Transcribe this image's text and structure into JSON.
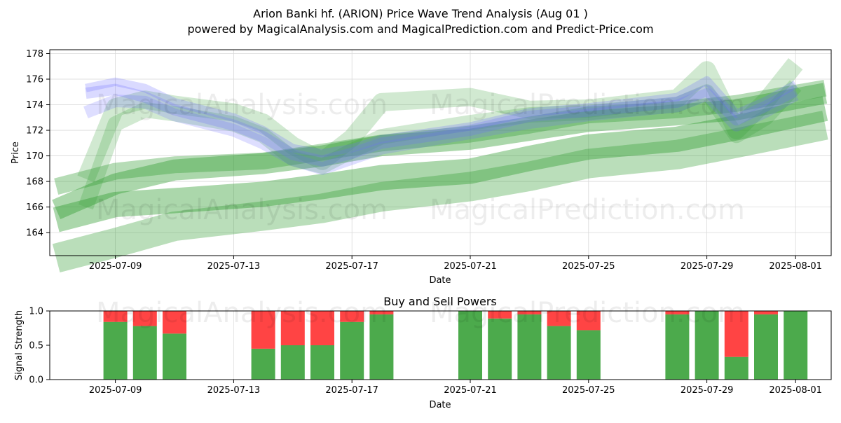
{
  "header": {
    "title_line1": "Arion Banki hf. (ARION) Price Wave Trend Analysis (Aug 01 )",
    "title_line2": "powered by MagicalAnalysis.com and MagicalPrediction.com and Predict-Price.com"
  },
  "watermarks": {
    "left": "MagicalAnalysis.com",
    "right": "MagicalPrediction.com"
  },
  "colors": {
    "blue_band": "#6b6bff",
    "green_band": "#2e9a2e",
    "buy": "#4caa4c",
    "sell": "#ff4444"
  },
  "chart_data": [
    {
      "type": "area",
      "title": "",
      "xlabel": "Date",
      "ylabel": "Price",
      "ylim": [
        162.2,
        178.3
      ],
      "grid": true,
      "x_dates": [
        "2025-07-07",
        "2025-07-08",
        "2025-07-09",
        "2025-07-10",
        "2025-07-11",
        "2025-07-12",
        "2025-07-13",
        "2025-07-14",
        "2025-07-15",
        "2025-07-16",
        "2025-07-17",
        "2025-07-18",
        "2025-07-19",
        "2025-07-20",
        "2025-07-21",
        "2025-07-22",
        "2025-07-23",
        "2025-07-24",
        "2025-07-25",
        "2025-07-26",
        "2025-07-27",
        "2025-07-28",
        "2025-07-29",
        "2025-07-30",
        "2025-07-31",
        "2025-08-01",
        "2025-08-02"
      ],
      "x_tick_labels": [
        "2025-07-09",
        "2025-07-13",
        "2025-07-17",
        "2025-07-21",
        "2025-07-25",
        "2025-07-29",
        "2025-08-01"
      ],
      "y_tick_labels": [
        "164",
        "166",
        "168",
        "170",
        "172",
        "174",
        "176",
        "178"
      ],
      "series": [
        {
          "name": "blue wave 1",
          "x": [
            "2025-07-08",
            "2025-07-09",
            "2025-07-10",
            "2025-07-11",
            "2025-07-13",
            "2025-07-14",
            "2025-07-15",
            "2025-07-16",
            "2025-07-17",
            "2025-07-18",
            "2025-07-21",
            "2025-07-23",
            "2025-07-25",
            "2025-07-28",
            "2025-07-29",
            "2025-07-30",
            "2025-07-31",
            "2025-08-01"
          ],
          "values": [
            175.3,
            175.8,
            175.3,
            174.2,
            173.0,
            172.0,
            170.6,
            170.2,
            170.6,
            171.3,
            172.3,
            173.4,
            173.8,
            174.6,
            175.9,
            173.3,
            174.3,
            175.6
          ]
        },
        {
          "name": "blue wave 2",
          "x": [
            "2025-07-08",
            "2025-07-09",
            "2025-07-10",
            "2025-07-11",
            "2025-07-13",
            "2025-07-14",
            "2025-07-15",
            "2025-07-16",
            "2025-07-17",
            "2025-07-18",
            "2025-07-21",
            "2025-07-23",
            "2025-07-25",
            "2025-07-28",
            "2025-07-29",
            "2025-07-30",
            "2025-07-31",
            "2025-08-01"
          ],
          "values": [
            174.9,
            175.2,
            174.6,
            173.6,
            172.4,
            171.5,
            170.1,
            169.6,
            170.2,
            171.0,
            172.0,
            173.1,
            173.5,
            174.2,
            175.1,
            172.8,
            173.9,
            175.1
          ]
        },
        {
          "name": "blue wave 3",
          "x": [
            "2025-07-08",
            "2025-07-09",
            "2025-07-10",
            "2025-07-11",
            "2025-07-13",
            "2025-07-14",
            "2025-07-15",
            "2025-07-16",
            "2025-07-17",
            "2025-07-18",
            "2025-07-21",
            "2025-07-23",
            "2025-07-25",
            "2025-07-28",
            "2025-07-29",
            "2025-07-30",
            "2025-07-31",
            "2025-08-01"
          ],
          "values": [
            173.4,
            174.3,
            174.2,
            173.2,
            172.0,
            171.0,
            169.7,
            169.0,
            169.8,
            170.6,
            171.8,
            172.6,
            173.2,
            173.9,
            174.8,
            172.4,
            173.5,
            174.8
          ]
        },
        {
          "name": "green wave upper",
          "x": [
            "2025-07-08",
            "2025-07-09",
            "2025-07-10",
            "2025-07-11",
            "2025-07-13",
            "2025-07-14",
            "2025-07-15",
            "2025-07-16",
            "2025-07-17",
            "2025-07-18",
            "2025-07-21",
            "2025-07-23",
            "2025-07-25",
            "2025-07-28",
            "2025-07-29",
            "2025-07-30",
            "2025-07-31",
            "2025-08-01"
          ],
          "values": [
            168.2,
            173.8,
            174.4,
            174.0,
            173.4,
            172.6,
            170.8,
            169.6,
            171.4,
            174.2,
            174.6,
            173.6,
            173.7,
            174.5,
            176.7,
            172.0,
            174.3,
            177.2
          ]
        },
        {
          "name": "green wave lower",
          "x": [
            "2025-07-08",
            "2025-07-09",
            "2025-07-10",
            "2025-07-11",
            "2025-07-13",
            "2025-07-14",
            "2025-07-15",
            "2025-07-16",
            "2025-07-17",
            "2025-07-18",
            "2025-07-21",
            "2025-07-23",
            "2025-07-25",
            "2025-07-28",
            "2025-07-29",
            "2025-07-30",
            "2025-07-31",
            "2025-08-01"
          ],
          "values": [
            166.0,
            172.5,
            173.6,
            173.3,
            172.5,
            171.6,
            169.8,
            169.2,
            170.4,
            171.5,
            172.6,
            173.2,
            173.4,
            174.0,
            175.0,
            171.6,
            173.0,
            175.5
          ]
        },
        {
          "name": "trend band 1",
          "x": [
            "2025-07-07",
            "2025-07-09",
            "2025-07-11",
            "2025-07-14",
            "2025-07-16",
            "2025-07-18",
            "2025-07-21",
            "2025-07-23",
            "2025-07-25",
            "2025-07-28",
            "2025-07-30",
            "2025-08-02"
          ],
          "values": [
            167.6,
            168.8,
            169.3,
            169.6,
            170.3,
            171.0,
            171.7,
            172.4,
            173.2,
            173.6,
            174.1,
            175.3
          ]
        },
        {
          "name": "trend band 2",
          "x": [
            "2025-07-07",
            "2025-07-09",
            "2025-07-11",
            "2025-07-14",
            "2025-07-16",
            "2025-07-18",
            "2025-07-21",
            "2025-07-23",
            "2025-07-25",
            "2025-07-28",
            "2025-07-30",
            "2025-08-02"
          ],
          "values": [
            165.8,
            167.8,
            168.9,
            169.4,
            170.0,
            170.8,
            171.3,
            172.0,
            172.7,
            173.2,
            173.6,
            174.9
          ]
        },
        {
          "name": "trend band 3",
          "x": [
            "2025-07-07",
            "2025-07-09",
            "2025-07-11",
            "2025-07-14",
            "2025-07-16",
            "2025-07-18",
            "2025-07-21",
            "2025-07-23",
            "2025-07-25",
            "2025-07-28",
            "2025-07-30",
            "2025-08-02"
          ],
          "values": [
            165.0,
            166.2,
            166.5,
            167.0,
            167.6,
            168.3,
            168.8,
            169.8,
            170.7,
            171.3,
            172.2,
            173.7
          ]
        },
        {
          "name": "trend band 4",
          "x": [
            "2025-07-07",
            "2025-07-09",
            "2025-07-11",
            "2025-07-14",
            "2025-07-16",
            "2025-07-18",
            "2025-07-21",
            "2025-07-23",
            "2025-07-25",
            "2025-07-28",
            "2025-07-30",
            "2025-08-02"
          ],
          "values": [
            162.0,
            163.2,
            164.5,
            165.3,
            165.9,
            166.8,
            167.6,
            168.4,
            169.4,
            170.1,
            171.0,
            172.4
          ]
        }
      ]
    },
    {
      "type": "bar",
      "title": "Buy and Sell Powers",
      "xlabel": "Date",
      "ylabel": "Signal Strength",
      "ylim": [
        0,
        1.0
      ],
      "y_tick_labels": [
        "0.0",
        "0.5",
        "1.0"
      ],
      "x_tick_labels": [
        "2025-07-09",
        "2025-07-13",
        "2025-07-17",
        "2025-07-21",
        "2025-07-25",
        "2025-07-29",
        "2025-08-01"
      ],
      "categories": [
        "2025-07-09",
        "2025-07-10",
        "2025-07-11",
        "2025-07-14",
        "2025-07-15",
        "2025-07-16",
        "2025-07-17",
        "2025-07-18",
        "2025-07-21",
        "2025-07-22",
        "2025-07-23",
        "2025-07-24",
        "2025-07-25",
        "2025-07-28",
        "2025-07-29",
        "2025-07-30",
        "2025-07-31",
        "2025-08-01"
      ],
      "series": [
        {
          "name": "Buy",
          "values": [
            0.84,
            0.78,
            0.67,
            0.45,
            0.5,
            0.5,
            0.84,
            0.95,
            1.0,
            0.89,
            0.95,
            0.78,
            0.72,
            0.95,
            1.0,
            0.33,
            0.95,
            1.0
          ]
        },
        {
          "name": "Sell",
          "values": [
            0.16,
            0.22,
            0.33,
            0.55,
            0.5,
            0.5,
            0.16,
            0.05,
            0.0,
            0.11,
            0.05,
            0.22,
            0.28,
            0.05,
            0.0,
            0.67,
            0.05,
            0.0
          ]
        }
      ]
    }
  ]
}
